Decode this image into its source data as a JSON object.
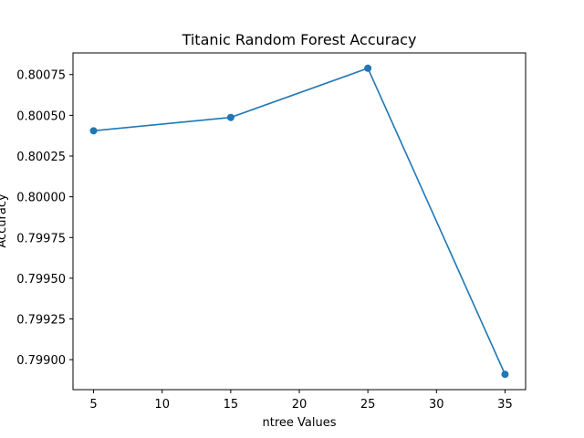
{
  "chart_data": {
    "type": "line",
    "title": "Titanic Random Forest Accuracy",
    "xlabel": "ntree Values",
    "ylabel": "Accuracy",
    "x": [
      5,
      15,
      25,
      35
    ],
    "series": [
      {
        "values": [
          0.800405,
          0.800487,
          0.800789,
          0.79891
        ],
        "color": "#1f77b4",
        "marker": "circle"
      }
    ],
    "xticks": [
      5,
      10,
      15,
      20,
      25,
      30,
      35
    ],
    "xtick_labels": [
      "5",
      "10",
      "15",
      "20",
      "25",
      "30",
      "35"
    ],
    "yticks": [
      0.799,
      0.79925,
      0.7995,
      0.79975,
      0.8,
      0.80025,
      0.8005,
      0.80075
    ],
    "ytick_labels": [
      "0.79900",
      "0.79925",
      "0.79950",
      "0.79975",
      "0.80000",
      "0.80025",
      "0.80050",
      "0.80075"
    ],
    "xlim": [
      3.5,
      36.5
    ],
    "ylim": [
      0.798816,
      0.800883
    ],
    "grid": false,
    "legend": "none"
  }
}
